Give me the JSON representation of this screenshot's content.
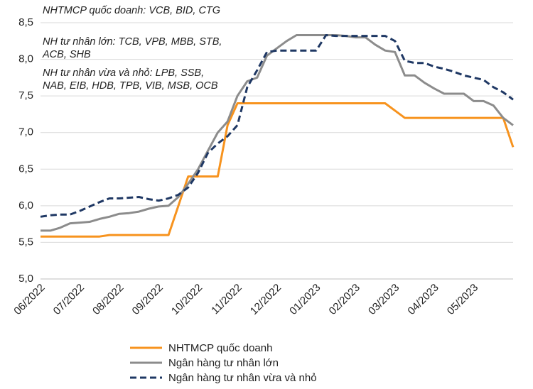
{
  "chart_data": {
    "type": "line",
    "annotations": [
      "NHTMCP quốc doanh: VCB, BID, CTG",
      "NH tư nhân lớn: TCB, VPB, MBB, STB, ACB, SHB",
      "NH tư nhân vừa và nhỏ: LPB, SSB, NAB, EIB, HDB, TPB, VIB, MSB, OCB"
    ],
    "categories": [
      "06/2022",
      null,
      null,
      null,
      "07/2022",
      null,
      null,
      null,
      "08/2022",
      null,
      null,
      null,
      "09/2022",
      null,
      null,
      null,
      "10/2022",
      null,
      null,
      null,
      "11/2022",
      null,
      null,
      null,
      "12/2022",
      null,
      null,
      null,
      "01/2023",
      null,
      null,
      null,
      "02/2023",
      null,
      null,
      null,
      "03/2023",
      null,
      null,
      null,
      "04/2023",
      null,
      null,
      null,
      "05/2023",
      null,
      null,
      null,
      null
    ],
    "series": [
      {
        "name": "NHTMCP quốc doanh",
        "color": "#f7931e",
        "dash": false,
        "values": [
          5.58,
          5.58,
          5.58,
          5.58,
          5.58,
          5.58,
          5.58,
          5.6,
          5.6,
          5.6,
          5.6,
          5.6,
          5.6,
          5.6,
          6.0,
          6.4,
          6.4,
          6.4,
          6.4,
          7.1,
          7.4,
          7.4,
          7.4,
          7.4,
          7.4,
          7.4,
          7.4,
          7.4,
          7.4,
          7.4,
          7.4,
          7.4,
          7.4,
          7.4,
          7.4,
          7.4,
          7.3,
          7.2,
          7.2,
          7.2,
          7.2,
          7.2,
          7.2,
          7.2,
          7.2,
          7.2,
          7.2,
          7.2,
          6.8
        ]
      },
      {
        "name": "Ngân hàng tư nhân lớn",
        "color": "#8c8c8c",
        "dash": false,
        "values": [
          5.66,
          5.66,
          5.7,
          5.76,
          5.77,
          5.78,
          5.82,
          5.85,
          5.89,
          5.9,
          5.92,
          5.96,
          5.99,
          6.0,
          6.12,
          6.3,
          6.5,
          6.75,
          7.0,
          7.15,
          7.5,
          7.7,
          7.75,
          8.05,
          8.15,
          8.25,
          8.33,
          8.33,
          8.33,
          8.33,
          8.33,
          8.32,
          8.3,
          8.3,
          8.2,
          8.12,
          8.1,
          7.78,
          7.78,
          7.68,
          7.6,
          7.53,
          7.53,
          7.53,
          7.43,
          7.43,
          7.37,
          7.2,
          7.1
        ]
      },
      {
        "name": "Ngân hàng tư nhân vừa và nhỏ",
        "color": "#1f3864",
        "dash": true,
        "values": [
          5.85,
          5.87,
          5.88,
          5.88,
          5.93,
          5.99,
          6.05,
          6.1,
          6.1,
          6.11,
          6.12,
          6.09,
          6.07,
          6.1,
          6.15,
          6.25,
          6.45,
          6.72,
          6.85,
          6.95,
          7.1,
          7.62,
          7.85,
          8.1,
          8.12,
          8.12,
          8.12,
          8.12,
          8.12,
          8.33,
          8.32,
          8.32,
          8.32,
          8.32,
          8.32,
          8.32,
          8.25,
          7.98,
          7.95,
          7.95,
          7.9,
          7.87,
          7.83,
          7.78,
          7.75,
          7.72,
          7.62,
          7.55,
          7.45
        ]
      }
    ],
    "ylim": [
      5.0,
      8.5
    ],
    "yticks": [
      {
        "value": 5.0,
        "label": "5,0"
      },
      {
        "value": 5.5,
        "label": "5,5"
      },
      {
        "value": 6.0,
        "label": "6,0"
      },
      {
        "value": 6.5,
        "label": "6,5"
      },
      {
        "value": 7.0,
        "label": "7,0"
      },
      {
        "value": 7.5,
        "label": "7,5"
      },
      {
        "value": 8.0,
        "label": "8,0"
      },
      {
        "value": 8.5,
        "label": "8,5"
      }
    ],
    "grid": true,
    "legend": "bottom"
  }
}
